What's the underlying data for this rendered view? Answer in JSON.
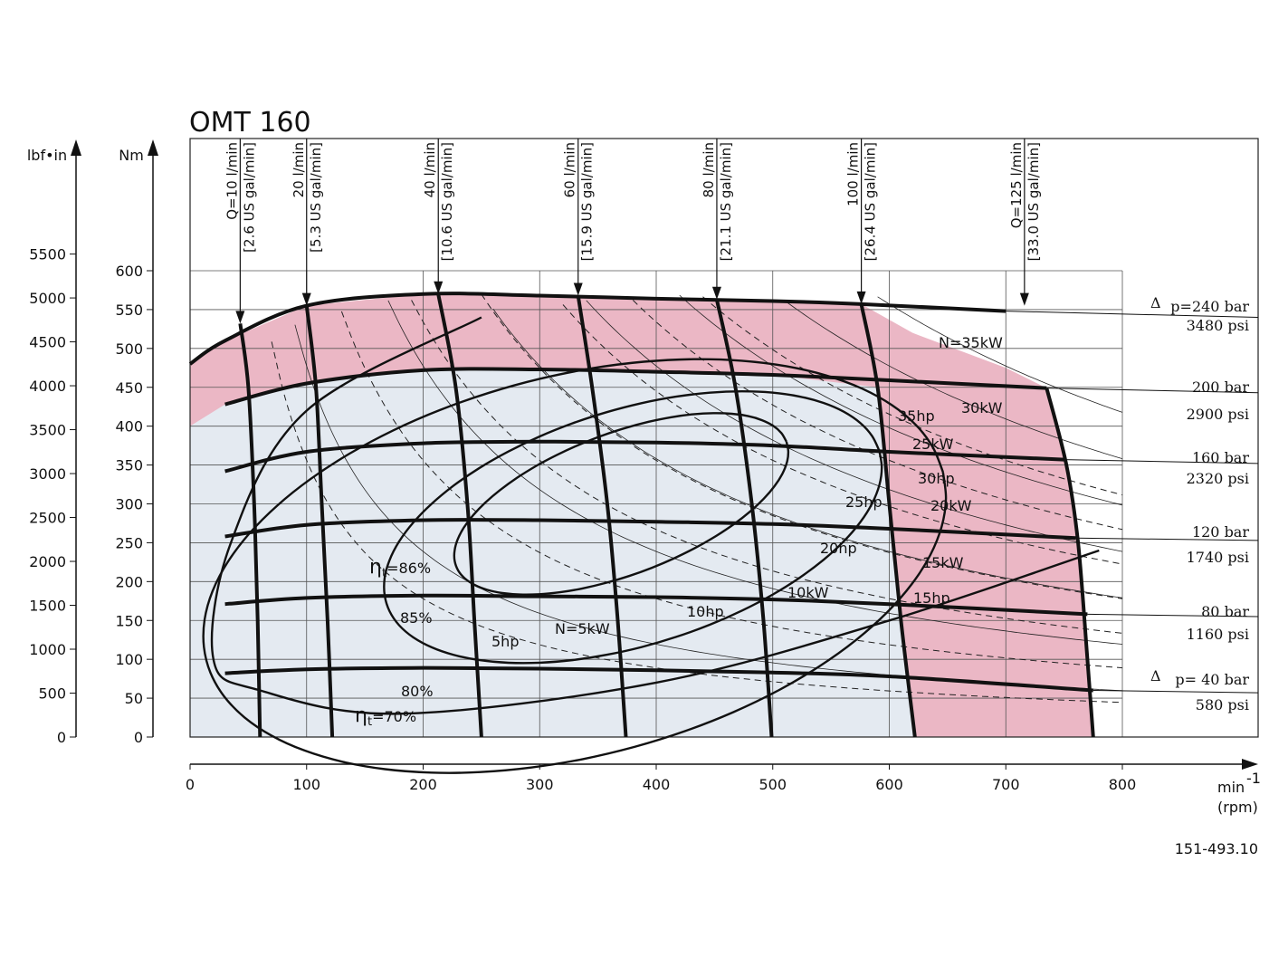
{
  "chart_data": {
    "type": "line",
    "title": "OMT 160",
    "x_axis": {
      "unit_line1": "min",
      "unit_sup": "-1",
      "unit_line2": "(rpm)",
      "range": [
        0,
        800
      ],
      "ticks": [
        0,
        100,
        200,
        300,
        400,
        500,
        600,
        700,
        800
      ]
    },
    "y_axis_nm": {
      "label": "Nm",
      "range": [
        0,
        600
      ],
      "ticks": [
        0,
        50,
        100,
        150,
        200,
        250,
        300,
        350,
        400,
        450,
        500,
        550,
        600
      ]
    },
    "y_axis_lbf": {
      "label": "lbf•in",
      "range": [
        0,
        5310
      ],
      "ticks": [
        0,
        500,
        1000,
        1500,
        2000,
        2500,
        3000,
        3500,
        4000,
        4500,
        5000,
        5500
      ]
    },
    "grid": true,
    "pressure_lines": [
      {
        "label": "p=240 bar",
        "delta": true,
        "psi": "3480 psi",
        "points": [
          [
            0,
            480
          ],
          [
            30,
            510
          ],
          [
            100,
            555
          ],
          [
            200,
            570
          ],
          [
            300,
            568
          ],
          [
            400,
            564
          ],
          [
            500,
            561
          ],
          [
            576,
            557
          ],
          [
            700,
            548
          ],
          [
            800,
            540
          ]
        ]
      },
      {
        "label": "200 bar",
        "delta": false,
        "psi": "2900 psi",
        "points": [
          [
            30,
            428
          ],
          [
            100,
            455
          ],
          [
            200,
            472
          ],
          [
            300,
            473
          ],
          [
            400,
            470
          ],
          [
            500,
            466
          ],
          [
            600,
            459
          ],
          [
            735,
            449
          ],
          [
            800,
            443
          ]
        ]
      },
      {
        "label": "160 bar",
        "delta": false,
        "psi": "2320 psi",
        "points": [
          [
            30,
            342
          ],
          [
            100,
            367
          ],
          [
            200,
            378
          ],
          [
            300,
            380
          ],
          [
            400,
            379
          ],
          [
            500,
            375
          ],
          [
            600,
            367
          ],
          [
            750,
            357
          ],
          [
            800,
            352
          ]
        ]
      },
      {
        "label": "120 bar",
        "delta": false,
        "psi": "1740 psi",
        "points": [
          [
            30,
            258
          ],
          [
            100,
            273
          ],
          [
            200,
            279
          ],
          [
            300,
            279
          ],
          [
            400,
            277
          ],
          [
            500,
            274
          ],
          [
            600,
            268
          ],
          [
            760,
            256
          ],
          [
            800,
            253
          ]
        ]
      },
      {
        "label": "80 bar",
        "delta": false,
        "psi": "1160 psi",
        "points": [
          [
            30,
            171
          ],
          [
            100,
            179
          ],
          [
            200,
            182
          ],
          [
            300,
            181
          ],
          [
            400,
            180
          ],
          [
            500,
            177
          ],
          [
            600,
            171
          ],
          [
            770,
            158
          ],
          [
            800,
            155
          ]
        ]
      },
      {
        "label": "p= 40 bar",
        "delta": true,
        "psi": "580 psi",
        "points": [
          [
            30,
            82
          ],
          [
            100,
            87
          ],
          [
            200,
            89
          ],
          [
            300,
            88
          ],
          [
            400,
            86
          ],
          [
            500,
            83
          ],
          [
            600,
            78
          ],
          [
            775,
            60
          ],
          [
            800,
            57
          ]
        ]
      }
    ],
    "flow_lines": [
      {
        "label": "Q=10 l/min",
        "us": "[2.6 US gal/min]",
        "arrow_rpm": 43,
        "points": [
          [
            43,
            532
          ],
          [
            50,
            450
          ],
          [
            55,
            300
          ],
          [
            58,
            150
          ],
          [
            60,
            0
          ]
        ]
      },
      {
        "label": "20 l/min",
        "us": "[5.3 US gal/min]",
        "arrow_rpm": 100,
        "points": [
          [
            100,
            555
          ],
          [
            108,
            450
          ],
          [
            113,
            300
          ],
          [
            118,
            150
          ],
          [
            122,
            0
          ]
        ]
      },
      {
        "label": "40 l/min",
        "us": "[10.6 US gal/min]",
        "arrow_rpm": 213,
        "points": [
          [
            213,
            570
          ],
          [
            228,
            450
          ],
          [
            238,
            300
          ],
          [
            244,
            150
          ],
          [
            250,
            0
          ]
        ]
      },
      {
        "label": "60 l/min",
        "us": "[15.9 US gal/min]",
        "arrow_rpm": 333,
        "points": [
          [
            333,
            568
          ],
          [
            345,
            450
          ],
          [
            358,
            300
          ],
          [
            367,
            150
          ],
          [
            374,
            0
          ]
        ]
      },
      {
        "label": "80 l/min",
        "us": "[21.1 US gal/min]",
        "arrow_rpm": 452,
        "points": [
          [
            452,
            563
          ],
          [
            468,
            450
          ],
          [
            482,
            300
          ],
          [
            492,
            150
          ],
          [
            499,
            0
          ]
        ]
      },
      {
        "label": "100 l/min",
        "us": "[26.4 US gal/min]",
        "arrow_rpm": 576,
        "points": [
          [
            576,
            557
          ],
          [
            590,
            450
          ],
          [
            600,
            300
          ],
          [
            610,
            150
          ],
          [
            622,
            0
          ]
        ]
      },
      {
        "label": "Q=125 l/min",
        "us": "[33.0 US gal/min]",
        "arrow_rpm": 716,
        "points": [
          [
            735,
            449
          ],
          [
            752,
            350
          ],
          [
            762,
            250
          ],
          [
            770,
            100
          ],
          [
            775,
            0
          ]
        ]
      }
    ],
    "power_labels": [
      {
        "text": "N=35kW"
      },
      {
        "text": "30kW"
      },
      {
        "text": "35hp"
      },
      {
        "text": "25kW"
      },
      {
        "text": "30hp"
      },
      {
        "text": "25hp"
      },
      {
        "text": "20kW"
      },
      {
        "text": "20hp"
      },
      {
        "text": "15kW"
      },
      {
        "text": "10kW"
      },
      {
        "text": "15hp"
      },
      {
        "text": "10hp"
      },
      {
        "text": "N=5kW"
      },
      {
        "text": "5hp"
      }
    ],
    "efficiency_labels": [
      {
        "greek": "η",
        "sub": "t",
        "text": "=86%"
      },
      {
        "greek": "",
        "sub": "",
        "text": "85%"
      },
      {
        "greek": "",
        "sub": "",
        "text": "80%"
      },
      {
        "greek": "η",
        "sub": "t",
        "text": "=70%"
      }
    ],
    "regions": {
      "continuous_color": "#e4eaf1",
      "intermittent_color": "#ebb7c5"
    }
  },
  "figure_ref": "151-493.10"
}
